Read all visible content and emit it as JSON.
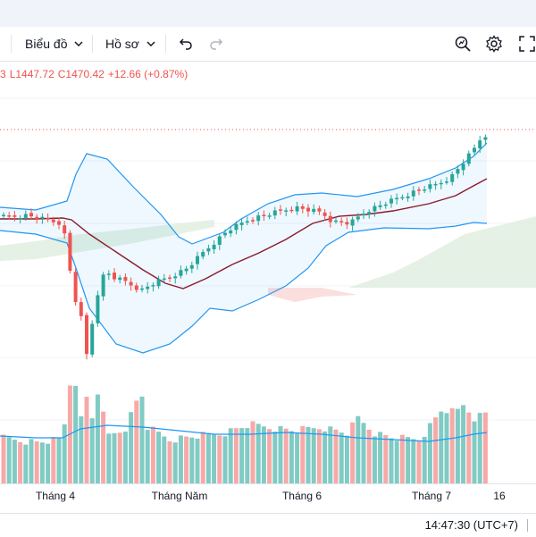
{
  "toolbar": {
    "chart_type_label": "Biểu đồ",
    "profile_label": "Hồ sơ",
    "undo_icon": "undo-icon",
    "redo_icon": "redo-icon",
    "quick_search_icon": "quick-search-icon",
    "settings_icon": "gear-icon",
    "fullscreen_icon": "fullscreen-icon"
  },
  "legend": {
    "open_fragment": "3",
    "low": "L1447.72",
    "close": "C1470.42",
    "change": "+12.66 (+0.87%)"
  },
  "x_axis": {
    "ticks": [
      "Tháng 4",
      "Tháng Năm",
      "Tháng 6",
      "Tháng 7",
      "16"
    ]
  },
  "status": {
    "clock": "14:47:30 (UTC+7)"
  },
  "colors": {
    "up": "#26a69a",
    "down": "#ef5350",
    "bollinger": "#2196f3",
    "ma": "#8b1a2b",
    "cloud_green": "#e1efe0",
    "cloud_red": "#fbdada"
  },
  "chart_data": {
    "type": "candlestick",
    "indicators": [
      "Bollinger Bands",
      "Moving Average",
      "Ichimoku Cloud",
      "Volume",
      "Volume MA"
    ],
    "last_close": 1470.42,
    "last_low": 1447.72,
    "last_change": 12.66,
    "last_change_pct": 0.87,
    "x_ticks": [
      "Tháng 4",
      "Tháng Năm",
      "Tháng 6",
      "Tháng 7",
      "16"
    ]
  }
}
